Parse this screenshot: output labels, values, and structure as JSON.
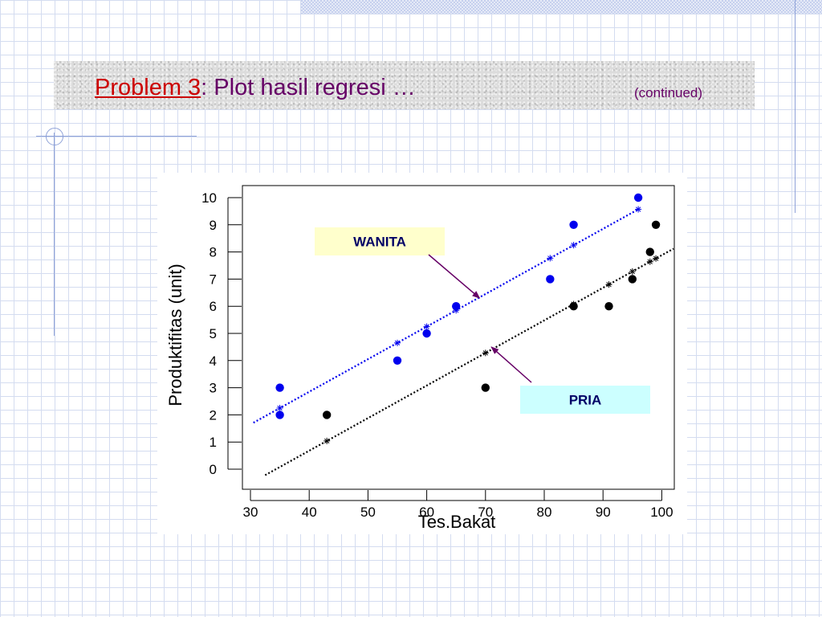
{
  "slide": {
    "title_prefix": "Problem 3",
    "title_rest": ": Plot hasil regresi …",
    "continued": "(continued)"
  },
  "chart_data": {
    "type": "scatter",
    "xlabel": "Tes.Bakat",
    "ylabel": "Produktifitas (unit)",
    "xlim": [
      30,
      100
    ],
    "ylim": [
      0,
      10
    ],
    "x_ticks": [
      "30",
      "40",
      "50",
      "60",
      "70",
      "80",
      "90",
      "100"
    ],
    "y_ticks": [
      "0",
      "1",
      "2",
      "3",
      "4",
      "5",
      "6",
      "7",
      "8",
      "9",
      "10"
    ],
    "grid": false,
    "series": [
      {
        "name": "WANITA",
        "color": "#0000ee",
        "points": [
          [
            35,
            2
          ],
          [
            35,
            3
          ],
          [
            55,
            4
          ],
          [
            60,
            5
          ],
          [
            65,
            6
          ],
          [
            81,
            7
          ],
          [
            85,
            9
          ],
          [
            96,
            10
          ]
        ],
        "fitted": [
          [
            35,
            2.25
          ],
          [
            55,
            4.65
          ],
          [
            60,
            5.25
          ],
          [
            65,
            5.85
          ],
          [
            81,
            7.77
          ],
          [
            85,
            8.25
          ],
          [
            96,
            9.57
          ]
        ],
        "line": {
          "slope": 0.12,
          "intercept": -1.95,
          "x_start": 30.5,
          "x_end": 96
        }
      },
      {
        "name": "PRIA",
        "color": "#000000",
        "points": [
          [
            43,
            2
          ],
          [
            70,
            3
          ],
          [
            85,
            6
          ],
          [
            91,
            6
          ],
          [
            95,
            7
          ],
          [
            98,
            8
          ],
          [
            99,
            9
          ]
        ],
        "fitted": [
          [
            43,
            1.04
          ],
          [
            70,
            4.28
          ],
          [
            85,
            6.08
          ],
          [
            91,
            6.8
          ],
          [
            95,
            7.28
          ],
          [
            98,
            7.64
          ],
          [
            99,
            7.76
          ]
        ],
        "line": {
          "slope": 0.12,
          "intercept": -4.12,
          "x_start": 32.5,
          "x_end": 102
        }
      }
    ],
    "annotations": [
      {
        "label": "WANITA",
        "bg": "#ffffcc",
        "series": 0,
        "arrow_to": [
          69,
          6.3
        ]
      },
      {
        "label": "PRIA",
        "bg": "#ccffff",
        "series": 1,
        "arrow_to": [
          71,
          4.5
        ]
      }
    ]
  }
}
